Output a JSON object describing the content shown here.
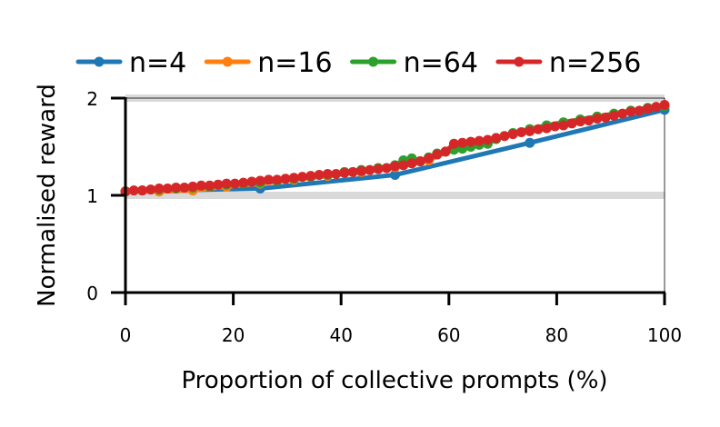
{
  "chart_data": {
    "type": "line",
    "title": "",
    "xlabel": "Proportion of collective prompts (%)",
    "ylabel": "Normalised reward",
    "xlim": [
      0,
      100
    ],
    "ylim": [
      0,
      2
    ],
    "xticks": [
      0,
      20,
      40,
      60,
      80,
      100
    ],
    "yticks": [
      0,
      1,
      2
    ],
    "reference_lines": [
      1,
      2
    ],
    "reference_line_color": "#d9d9d9",
    "legend_position": "top",
    "series": [
      {
        "name": "n=4",
        "color": "#1f77b4",
        "x": [
          0,
          25,
          50,
          75,
          100
        ],
        "y": [
          1.04,
          1.07,
          1.21,
          1.54,
          1.88
        ]
      },
      {
        "name": "n=16",
        "color": "#ff7f0e",
        "x": [
          0,
          6.25,
          12.5,
          18.75,
          25,
          31.25,
          37.5,
          43.75,
          50,
          56.25,
          62.5,
          68.75,
          75,
          81.25,
          87.5,
          93.75,
          100
        ],
        "y": [
          1.04,
          1.04,
          1.05,
          1.09,
          1.12,
          1.16,
          1.2,
          1.24,
          1.29,
          1.36,
          1.52,
          1.58,
          1.68,
          1.75,
          1.81,
          1.87,
          1.92
        ]
      },
      {
        "name": "n=64",
        "color": "#2ca02c",
        "x": [
          0,
          3.125,
          6.25,
          9.375,
          12.5,
          15.625,
          18.75,
          21.875,
          25,
          28.125,
          31.25,
          34.375,
          37.5,
          40.625,
          43.75,
          46.875,
          50,
          51.5625,
          53.125,
          54.6875,
          56.25,
          57.8125,
          59.375,
          60.9375,
          62.5,
          64.0625,
          65.625,
          67.1875,
          68.75,
          71.875,
          75,
          78.125,
          81.25,
          84.375,
          87.5,
          90.625,
          93.75,
          96.875,
          100
        ],
        "y": [
          1.04,
          1.05,
          1.06,
          1.07,
          1.08,
          1.09,
          1.11,
          1.12,
          1.13,
          1.15,
          1.17,
          1.19,
          1.21,
          1.24,
          1.26,
          1.28,
          1.31,
          1.36,
          1.38,
          1.35,
          1.39,
          1.43,
          1.45,
          1.47,
          1.48,
          1.5,
          1.52,
          1.53,
          1.58,
          1.64,
          1.68,
          1.72,
          1.75,
          1.78,
          1.81,
          1.84,
          1.87,
          1.9,
          1.92
        ]
      },
      {
        "name": "n=256",
        "color": "#d62728",
        "x": [
          0,
          1.5625,
          3.125,
          4.6875,
          6.25,
          7.8125,
          9.375,
          10.9375,
          12.5,
          14.0625,
          15.625,
          17.1875,
          18.75,
          20.3125,
          21.875,
          23.4375,
          25,
          26.5625,
          28.125,
          29.6875,
          31.25,
          32.8125,
          34.375,
          35.9375,
          37.5,
          39.0625,
          40.625,
          42.1875,
          43.75,
          45.3125,
          46.875,
          48.4375,
          50,
          51.5625,
          53.125,
          54.6875,
          56.25,
          57.8125,
          59.375,
          60.9375,
          62.5,
          64.0625,
          65.625,
          67.1875,
          68.75,
          70.3125,
          71.875,
          73.4375,
          75,
          76.5625,
          78.125,
          79.6875,
          81.25,
          82.8125,
          84.375,
          85.9375,
          87.5,
          89.0625,
          90.625,
          92.1875,
          93.75,
          95.3125,
          96.875,
          98.4375,
          100
        ],
        "y": [
          1.04,
          1.05,
          1.05,
          1.06,
          1.07,
          1.07,
          1.08,
          1.08,
          1.09,
          1.1,
          1.1,
          1.11,
          1.12,
          1.12,
          1.13,
          1.14,
          1.15,
          1.16,
          1.16,
          1.17,
          1.18,
          1.19,
          1.2,
          1.21,
          1.22,
          1.22,
          1.23,
          1.24,
          1.25,
          1.26,
          1.27,
          1.28,
          1.3,
          1.31,
          1.33,
          1.35,
          1.38,
          1.42,
          1.45,
          1.53,
          1.54,
          1.55,
          1.56,
          1.57,
          1.59,
          1.61,
          1.63,
          1.65,
          1.66,
          1.68,
          1.69,
          1.71,
          1.72,
          1.74,
          1.76,
          1.77,
          1.79,
          1.8,
          1.82,
          1.84,
          1.86,
          1.87,
          1.89,
          1.91,
          1.93
        ]
      }
    ]
  }
}
